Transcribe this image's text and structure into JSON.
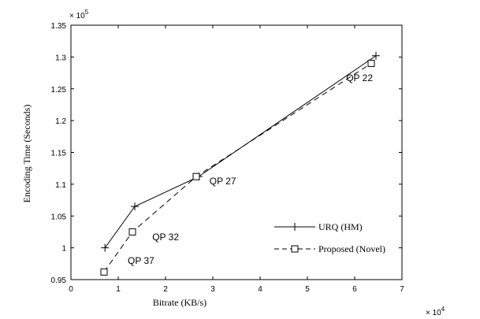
{
  "chart_data": {
    "type": "line",
    "xlabel": "Bitrate (KB/s)",
    "ylabel": "Encoding Time (Seconds)",
    "x_multiplier": "× 10",
    "x_multiplier_exp": "4",
    "y_multiplier": "× 10",
    "y_multiplier_exp": "5",
    "xlim": [
      0,
      7
    ],
    "ylim": [
      0.95,
      1.35
    ],
    "x_ticks": [
      "0",
      "1",
      "2",
      "3",
      "4",
      "5",
      "6",
      "7"
    ],
    "y_ticks": [
      "0.95",
      "1",
      "1.05",
      "1.1",
      "1.15",
      "1.2",
      "1.25",
      "1.3",
      "1.35"
    ],
    "grid": false,
    "legend_position": "lower-right",
    "series": [
      {
        "name": "URQ (HM)",
        "style": "solid",
        "marker": "plus",
        "color": "#000000",
        "x": [
          0.72,
          1.35,
          2.7,
          6.45
        ],
        "y": [
          1.0,
          1.065,
          1.112,
          1.302
        ]
      },
      {
        "name": "Proposed (Novel)",
        "style": "dashed",
        "marker": "square",
        "color": "#000000",
        "x": [
          0.7,
          1.3,
          2.65,
          6.35
        ],
        "y": [
          0.962,
          1.025,
          1.112,
          1.29
        ]
      }
    ],
    "annotations": [
      {
        "text": "QP 22",
        "x": 5.82,
        "y": 1.262
      },
      {
        "text": "QP 27",
        "x": 2.93,
        "y": 1.1
      },
      {
        "text": "QP 32",
        "x": 1.72,
        "y": 1.012
      },
      {
        "text": "QP 37",
        "x": 1.2,
        "y": 0.975
      }
    ]
  }
}
